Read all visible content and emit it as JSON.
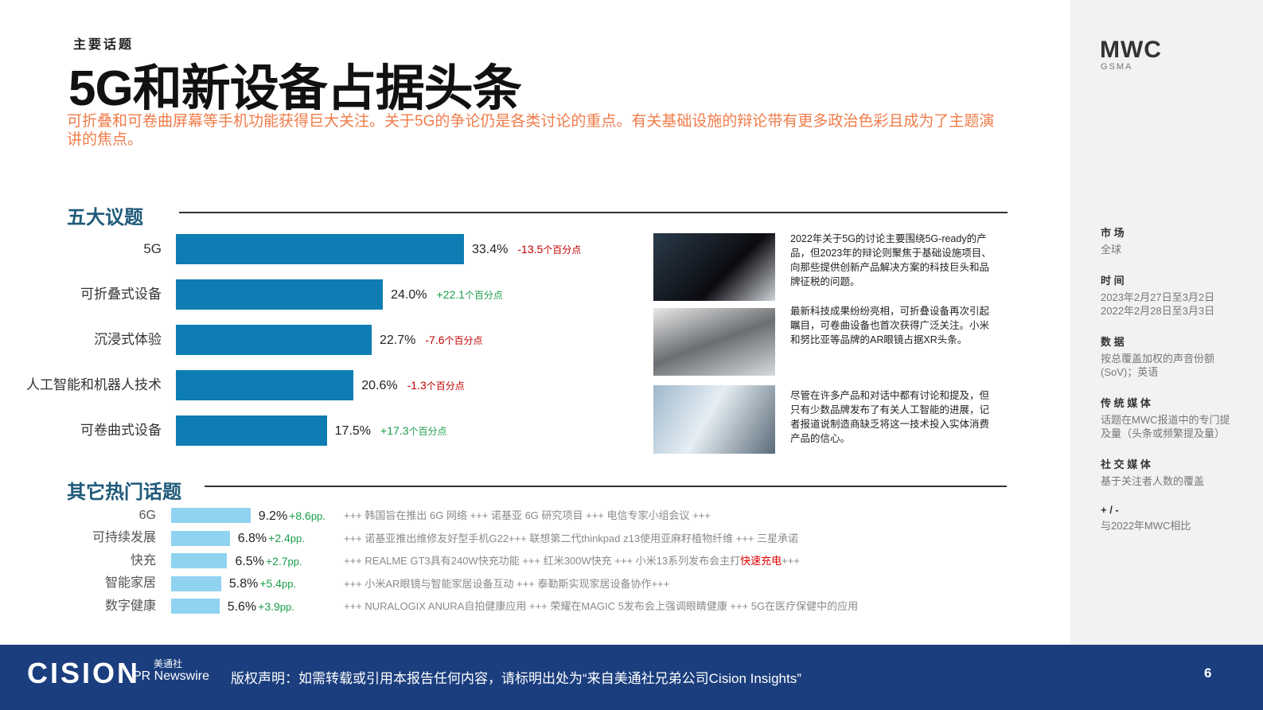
{
  "header": {
    "kicker": "主要话题",
    "title": "5G和新设备占据头条",
    "subtitle": "可折叠和可卷曲屏幕等手机功能获得巨大关注。关于5G的争论仍是各类讨论的重点。有关基础设施的辩论带有更多政治色彩且成为了主题演讲的焦点。"
  },
  "logo": {
    "name": "MWC",
    "org": "GSMA"
  },
  "top_topics": {
    "title": "五大议题",
    "chart_data": {
      "type": "bar",
      "orientation": "horizontal",
      "categories": [
        "5G",
        "可折叠式设备",
        "沉浸式体验",
        "人工智能和机器人技术",
        "可卷曲式设备"
      ],
      "values": [
        33.4,
        24.0,
        22.7,
        20.6,
        17.5
      ],
      "value_labels": [
        "33.4%",
        "24.0%",
        "22.7%",
        "20.6%",
        "17.5%"
      ],
      "change_labels": [
        "-13.5",
        "+22.1",
        "-7.6",
        "-1.3",
        "+17.3"
      ],
      "change_unit": "个百分点",
      "color": "#0e7db3"
    }
  },
  "highlights": [
    "2022年关于5G的讨论主要围绕5G-ready的产品，但2023年的辩论则聚焦于基础设施项目、向那些提供创新产品解决方案的科技巨头和品牌征税的问题。",
    "最新科技成果纷纷亮相，可折叠设备再次引起瞩目，可卷曲设备也首次获得广泛关注。小米和努比亚等品牌的AR眼镜占据XR头条。",
    "尽管在许多产品和对话中都有讨论和提及，但只有少数品牌发布了有关人工智能的进展，记者报道说制造商缺乏将这一技术投入实体消费产品的信心。"
  ],
  "other_topics": {
    "title": "其它热门话题",
    "chart_data": {
      "type": "bar",
      "orientation": "horizontal",
      "categories": [
        "6G",
        "可持续发展",
        "快充",
        "智能家居",
        "数字健康"
      ],
      "values": [
        9.2,
        6.8,
        6.5,
        5.8,
        5.6
      ],
      "value_labels": [
        "9.2%",
        "6.8%",
        "6.5%",
        "5.8%",
        "5.6%"
      ],
      "change_labels": [
        "+8.6",
        "+2.4",
        "+2.7",
        "+5.4",
        "+3.9"
      ],
      "change_unit": "pp.",
      "color": "#8fd3f0"
    },
    "news": [
      [
        {
          "text": "+++ 韩国旨在推出 6G 网络 +++ 诺基亚 6G 研究项目 +++ 电信专家小组会议 +++"
        }
      ],
      [
        {
          "text": "+++ 诺基亚推出维修友好型手机G22+++ 联想第二代thinkpad z13使用亚麻籽植物纤维 +++ 三星承诺"
        }
      ],
      [
        {
          "text": "+++ REALME GT3具有240W快充功能 +++ 红米300W快充 +++ 小米13系列发布会主打"
        },
        {
          "text": "快速充电",
          "color": "#e00000"
        },
        {
          "text": "+++"
        }
      ],
      [
        {
          "text": "+++ 小米AR眼镜与智能家居设备互动 +++ 泰勒斯实现家居设备协作+++"
        }
      ],
      [
        {
          "text": "+++ NURALOGIX ANURA自拍健康应用 +++ 荣耀在MAGIC 5发布会上强调眼睛健康 +++ 5G在医疗保健中的应用"
        }
      ]
    ]
  },
  "sidebar": [
    {
      "label": "市 场",
      "lines": [
        "全球"
      ]
    },
    {
      "label": "时 间",
      "lines": [
        "2023年2月27日至3月2日",
        "2022年2月28日至3月3日"
      ]
    },
    {
      "label": "数 据",
      "lines": [
        "按总覆盖加权的声音份额(SoV)；英语"
      ]
    },
    {
      "label": "传 统 媒 体",
      "lines": [
        "话题在MWC报道中的专门提及量（头条或频繁提及量）"
      ]
    },
    {
      "label": "社 交 媒 体",
      "lines": [
        "基于关注者人数的覆盖"
      ]
    },
    {
      "label": "+ / -",
      "lines": [
        "与2022年MWC相比"
      ]
    }
  ],
  "footer": {
    "brand": "CISION",
    "partner_cn": "美通社",
    "partner_en": "PR Newswire",
    "copyright": "版权声明：如需转载或引用本报告任何内容，请标明出处为“来自美通社兄弟公司Cision Insights”",
    "page": 6
  }
}
